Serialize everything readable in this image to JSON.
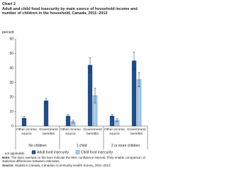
{
  "chart_data": {
    "type": "bar",
    "label": "Chart 2",
    "title": "Adult and child food insecurity by main source of household income and number of children in the household, Canada, 2011–2012",
    "y_label": "percent",
    "categories": [
      "Other income source",
      "Government benefits",
      "Other income source",
      "Government benefits",
      "Other income source",
      "Government benefits"
    ],
    "groups": [
      "No children",
      "1 child",
      "2 or more children"
    ],
    "series": [
      {
        "name": "Adult food insecurity",
        "color": "#1f4e8c",
        "values": [
          5.5,
          17.5,
          7,
          42,
          7,
          45
        ],
        "errors": [
          1,
          1.5,
          1,
          5,
          1,
          6
        ]
      },
      {
        "name": "Child food insecurity",
        "color": "#a9cbe8",
        "values": [
          null,
          null,
          3,
          21,
          4,
          32
        ],
        "errors": [
          null,
          null,
          1,
          5,
          1,
          5
        ]
      }
    ],
    "ylim": [
      0,
      60
    ],
    "yticks": [
      0,
      10,
      20,
      30,
      40,
      50,
      60
    ],
    "grid": false,
    "notes": {
      "na": ".. not applicable",
      "note_label": "Note:",
      "note": "The lines overlaid on the bars indicate the 95% confidence interval. They enable comparison of statistical differences between estimates.",
      "source_label": "Source:",
      "source": "Statistics Canada, Canadian Community Health Survey, 2011–2012."
    }
  }
}
